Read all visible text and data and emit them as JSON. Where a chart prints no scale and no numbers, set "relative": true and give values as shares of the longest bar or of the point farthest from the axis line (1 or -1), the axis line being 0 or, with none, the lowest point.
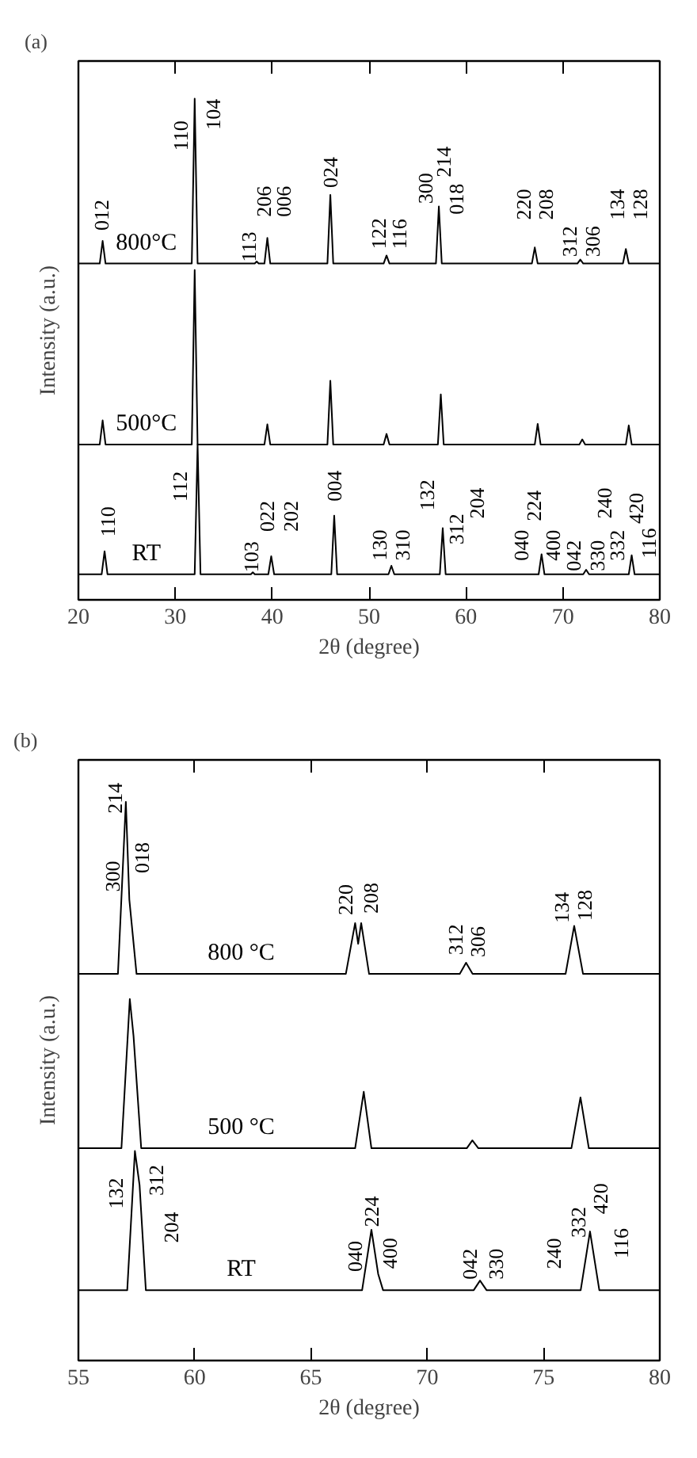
{
  "chart_data": [
    {
      "type": "line",
      "title": "(a)",
      "xlabel": "2θ (degree)",
      "ylabel": "Intensity (a.u.)",
      "relative": true,
      "xlim": [
        20,
        80
      ],
      "xticks": [
        20,
        30,
        40,
        50,
        60,
        70,
        80
      ],
      "series": [
        {
          "name": "800°C",
          "color": "#000000",
          "x": [
            20,
            22.2,
            22.5,
            22.8,
            31.7,
            32.0,
            32.3,
            38.2,
            38.4,
            38.6,
            39.2,
            39.5,
            39.8,
            45.7,
            46.0,
            46.3,
            51.5,
            51.8,
            52.1,
            56.9,
            57.2,
            57.5,
            66.8,
            67.1,
            67.4,
            71.5,
            71.8,
            72.1,
            76.2,
            76.5,
            76.8,
            80
          ],
          "values": [
            0.671,
            0.671,
            0.716,
            0.671,
            0.671,
            1.0,
            0.671,
            0.671,
            0.675,
            0.671,
            0.671,
            0.722,
            0.671,
            0.671,
            0.808,
            0.671,
            0.671,
            0.687,
            0.671,
            0.671,
            0.785,
            0.671,
            0.671,
            0.703,
            0.671,
            0.671,
            0.679,
            0.671,
            0.671,
            0.7,
            0.671,
            0.671
          ]
        },
        {
          "name": "500°C",
          "color": "#000000",
          "x": [
            20,
            22.2,
            22.5,
            22.8,
            31.7,
            32.0,
            32.3,
            39.2,
            39.5,
            39.8,
            45.7,
            46.0,
            46.3,
            51.5,
            51.8,
            52.1,
            57.1,
            57.4,
            57.7,
            67.1,
            67.4,
            67.7,
            71.7,
            72.0,
            72.3,
            76.5,
            76.8,
            77.1,
            80
          ],
          "values": [
            0.31,
            0.31,
            0.358,
            0.31,
            0.31,
            0.658,
            0.31,
            0.31,
            0.35,
            0.31,
            0.31,
            0.437,
            0.31,
            0.31,
            0.331,
            0.31,
            0.31,
            0.41,
            0.31,
            0.31,
            0.351,
            0.31,
            0.31,
            0.32,
            0.31,
            0.31,
            0.348,
            0.31,
            0.31
          ]
        },
        {
          "name": "RT",
          "color": "#000000",
          "x": [
            20,
            22.4,
            22.7,
            23.0,
            32.0,
            32.3,
            32.6,
            37.8,
            38.0,
            38.2,
            39.6,
            39.9,
            40.2,
            46.1,
            46.4,
            46.7,
            52.0,
            52.3,
            52.6,
            57.3,
            57.6,
            57.9,
            67.5,
            67.8,
            68.1,
            72.1,
            72.4,
            72.7,
            76.8,
            77.1,
            77.4,
            80
          ],
          "values": [
            0.051,
            0.051,
            0.097,
            0.051,
            0.051,
            0.31,
            0.051,
            0.051,
            0.055,
            0.051,
            0.051,
            0.087,
            0.051,
            0.051,
            0.168,
            0.051,
            0.051,
            0.068,
            0.051,
            0.051,
            0.143,
            0.051,
            0.051,
            0.091,
            0.051,
            0.051,
            0.06,
            0.051,
            0.051,
            0.089,
            0.051,
            0.051
          ]
        }
      ],
      "annotations": [
        {
          "text": "012",
          "x": 22.5,
          "y": 0.716
        },
        {
          "text": "110",
          "x": 32.0,
          "y": 1.0
        },
        {
          "text": "104",
          "x": 32.0,
          "y": 1.0
        },
        {
          "text": "113",
          "x": 38.4,
          "y": 0.675
        },
        {
          "text": "206",
          "x": 39.5,
          "y": 0.722
        },
        {
          "text": "006",
          "x": 39.5,
          "y": 0.722
        },
        {
          "text": "024",
          "x": 46.0,
          "y": 0.808
        },
        {
          "text": "122",
          "x": 51.8,
          "y": 0.687
        },
        {
          "text": "116",
          "x": 51.8,
          "y": 0.687
        },
        {
          "text": "300",
          "x": 57.2,
          "y": 0.785
        },
        {
          "text": "214",
          "x": 57.2,
          "y": 0.785
        },
        {
          "text": "018",
          "x": 57.2,
          "y": 0.785
        },
        {
          "text": "220",
          "x": 67.1,
          "y": 0.703
        },
        {
          "text": "208",
          "x": 67.1,
          "y": 0.703
        },
        {
          "text": "312",
          "x": 71.8,
          "y": 0.679
        },
        {
          "text": "306",
          "x": 71.8,
          "y": 0.679
        },
        {
          "text": "134",
          "x": 76.5,
          "y": 0.7
        },
        {
          "text": "128",
          "x": 76.5,
          "y": 0.7
        },
        {
          "text": "110",
          "x": 22.7,
          "y": 0.097
        },
        {
          "text": "112",
          "x": 32.3,
          "y": 0.31
        },
        {
          "text": "103",
          "x": 38.0,
          "y": 0.055
        },
        {
          "text": "022",
          "x": 39.9,
          "y": 0.087
        },
        {
          "text": "202",
          "x": 39.9,
          "y": 0.087
        },
        {
          "text": "004",
          "x": 46.4,
          "y": 0.168
        },
        {
          "text": "130",
          "x": 52.3,
          "y": 0.068
        },
        {
          "text": "310",
          "x": 52.3,
          "y": 0.068
        },
        {
          "text": "132",
          "x": 57.6,
          "y": 0.143
        },
        {
          "text": "312",
          "x": 57.6,
          "y": 0.143
        },
        {
          "text": "204",
          "x": 57.6,
          "y": 0.143
        },
        {
          "text": "040",
          "x": 67.8,
          "y": 0.091
        },
        {
          "text": "224",
          "x": 67.8,
          "y": 0.091
        },
        {
          "text": "400",
          "x": 67.8,
          "y": 0.091
        },
        {
          "text": "042",
          "x": 72.4,
          "y": 0.06
        },
        {
          "text": "330",
          "x": 72.4,
          "y": 0.06
        },
        {
          "text": "240",
          "x": 77.1,
          "y": 0.089
        },
        {
          "text": "332",
          "x": 77.1,
          "y": 0.089
        },
        {
          "text": "420",
          "x": 77.1,
          "y": 0.089
        },
        {
          "text": "116",
          "x": 77.1,
          "y": 0.089
        }
      ]
    },
    {
      "type": "line",
      "title": "(b)",
      "xlabel": "2θ (degree)",
      "ylabel": "Intensity (a.u.)",
      "relative": true,
      "xlim": [
        55,
        80
      ],
      "xticks": [
        55,
        60,
        65,
        70,
        75,
        80
      ],
      "series": [
        {
          "name": "800 °C",
          "color": "#000000",
          "x": [
            55,
            56.7,
            57.04,
            57.19,
            57.5,
            66.5,
            66.9,
            67.03,
            67.16,
            67.5,
            71.4,
            71.67,
            71.95,
            75.95,
            76.32,
            76.7,
            80
          ],
          "values": [
            0.692,
            0.692,
            1.0,
            0.825,
            0.692,
            0.692,
            0.783,
            0.746,
            0.783,
            0.692,
            0.692,
            0.712,
            0.692,
            0.692,
            0.778,
            0.692,
            0.692
          ]
        },
        {
          "name": "500 °C",
          "color": "#000000",
          "x": [
            55,
            56.85,
            57.21,
            57.37,
            57.7,
            66.9,
            67.27,
            67.6,
            71.7,
            71.94,
            72.2,
            76.2,
            76.59,
            76.95,
            80
          ],
          "values": [
            0.38,
            0.38,
            0.647,
            0.581,
            0.38,
            0.38,
            0.481,
            0.38,
            0.38,
            0.394,
            0.38,
            0.38,
            0.471,
            0.38,
            0.38
          ]
        },
        {
          "name": "RT",
          "color": "#000000",
          "x": [
            55,
            57.1,
            57.43,
            57.63,
            57.9,
            67.2,
            67.6,
            67.89,
            68.1,
            72.0,
            72.27,
            72.55,
            76.6,
            77.0,
            77.4,
            80
          ],
          "values": [
            0.126,
            0.126,
            0.375,
            0.314,
            0.126,
            0.126,
            0.234,
            0.155,
            0.126,
            0.126,
            0.143,
            0.126,
            0.126,
            0.231,
            0.126,
            0.126
          ]
        }
      ],
      "annotations": [
        {
          "text": "300",
          "x": 57.04,
          "y": 1.0
        },
        {
          "text": "214",
          "x": 57.04,
          "y": 1.0
        },
        {
          "text": "018",
          "x": 57.19,
          "y": 0.825
        },
        {
          "text": "220",
          "x": 66.9,
          "y": 0.783
        },
        {
          "text": "208",
          "x": 67.16,
          "y": 0.783
        },
        {
          "text": "312",
          "x": 71.67,
          "y": 0.712
        },
        {
          "text": "306",
          "x": 71.67,
          "y": 0.712
        },
        {
          "text": "134",
          "x": 76.32,
          "y": 0.778
        },
        {
          "text": "128",
          "x": 76.32,
          "y": 0.778
        },
        {
          "text": "132",
          "x": 57.43,
          "y": 0.375
        },
        {
          "text": "312",
          "x": 57.63,
          "y": 0.314
        },
        {
          "text": "204",
          "x": 57.63,
          "y": 0.314
        },
        {
          "text": "040",
          "x": 67.6,
          "y": 0.234
        },
        {
          "text": "224",
          "x": 67.6,
          "y": 0.234
        },
        {
          "text": "400",
          "x": 67.89,
          "y": 0.155
        },
        {
          "text": "042",
          "x": 72.27,
          "y": 0.143
        },
        {
          "text": "330",
          "x": 72.27,
          "y": 0.143
        },
        {
          "text": "240",
          "x": 77.0,
          "y": 0.231
        },
        {
          "text": "332",
          "x": 77.0,
          "y": 0.231
        },
        {
          "text": "420",
          "x": 77.0,
          "y": 0.231
        },
        {
          "text": "116",
          "x": 77.0,
          "y": 0.231
        }
      ]
    }
  ]
}
